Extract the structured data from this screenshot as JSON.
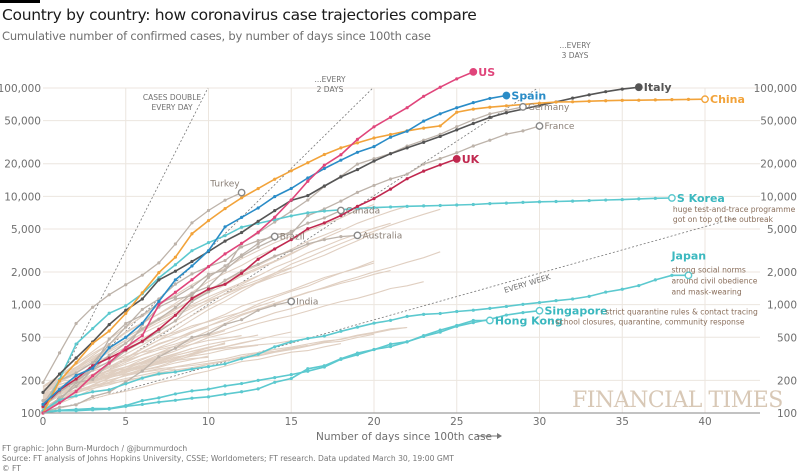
{
  "header": {
    "title": "Country by country: how coronavirus case trajectories compare",
    "subtitle": "Cumulative number of confirmed cases, by number of days since 100th case"
  },
  "footer": {
    "credit": "FT graphic: John Burn-Murdoch / @jburnmurdoch",
    "source": "Source: FT analysis of Johns Hopkins University, CSSE; Worldometers; FT research. Data updated March 30, 19:00 GMT",
    "copyright": "© FT"
  },
  "watermark": "FINANCIAL TIMES",
  "colors": {
    "us": "#e0457b",
    "spain": "#2a8cc7",
    "italy": "#555555",
    "china": "#f2a33a",
    "uk": "#c0284f",
    "teal": "#5cc9cf",
    "highlight_gray": "#bdb3aa",
    "background_line": "#e0cfc1",
    "grid": "#ece6df",
    "axis": "#9e9e9e"
  },
  "chart_data": {
    "type": "line",
    "title": "Country by country: how coronavirus case trajectories compare",
    "subtitle": "Cumulative number of confirmed cases, by number of days since 100th case",
    "xlabel": "Number of days since 100th case",
    "ylabel": "",
    "yscale": "log",
    "xlim": [
      0,
      43
    ],
    "ylim": [
      100,
      100000
    ],
    "x_ticks": [
      0,
      5,
      10,
      15,
      20,
      25,
      30,
      35,
      40
    ],
    "y_ticks": [
      100,
      200,
      500,
      1000,
      2000,
      5000,
      10000,
      20000,
      50000,
      100000
    ],
    "y_tick_labels": [
      "100",
      "200",
      "500",
      "1,000",
      "2,000",
      "5,000",
      "10,000",
      "20,000",
      "50,000",
      "100,000"
    ],
    "grid": true,
    "reference_lines": [
      {
        "label": "CASES DOUBLE EVERY DAY",
        "doubling_days": 1
      },
      {
        "label": "...EVERY 2 DAYS",
        "doubling_days": 2
      },
      {
        "label": "...EVERY 3 DAYS",
        "doubling_days": 3
      },
      {
        "label": "EVERY WEEK",
        "doubling_days": 7
      }
    ],
    "series": [
      {
        "name": "US",
        "style": "us",
        "label": "US",
        "values": [
          100,
          124,
          158,
          221,
          290,
          402,
          518,
          1000,
          1301,
          1697,
          2247,
          2943,
          3680,
          4663,
          6411,
          9259,
          13789,
          19383,
          24207,
          33546,
          43847,
          53740,
          65778,
          83836,
          101657,
          121478,
          140886
        ]
      },
      {
        "name": "Spain",
        "style": "spain",
        "label": "Spain",
        "values": [
          120,
          165,
          222,
          259,
          400,
          500,
          673,
          1073,
          1695,
          2277,
          3146,
          5232,
          6391,
          7798,
          9942,
          11826,
          14769,
          18077,
          21571,
          25496,
          28768,
          35136,
          39885,
          49515,
          57786,
          65719,
          73235,
          80110,
          85195
        ]
      },
      {
        "name": "Italy",
        "style": "italy",
        "label": "Italy",
        "values": [
          155,
          229,
          322,
          453,
          655,
          888,
          1128,
          1694,
          2036,
          2502,
          3089,
          3858,
          4636,
          5883,
          7375,
          9172,
          10149,
          12462,
          15113,
          17660,
          21157,
          24747,
          27980,
          31506,
          35713,
          41035,
          47021,
          53578,
          59138,
          63927,
          69176,
          74386,
          80589,
          86498,
          92472,
          97689,
          101739
        ]
      },
      {
        "name": "China",
        "style": "china",
        "label": "China",
        "values": [
          100,
          198,
          291,
          440,
          571,
          830,
          1287,
          1975,
          2744,
          4515,
          5974,
          7711,
          9692,
          11791,
          14380,
          17205,
          20440,
          24324,
          28018,
          31161,
          34546,
          37198,
          40171,
          42638,
          44653,
          59804,
          63851,
          66492,
          68500,
          70548,
          72436,
          74185,
          74576,
          75465,
          76288,
          76936,
          77150,
          77658,
          78064,
          78497,
          78824
        ]
      },
      {
        "name": "UK",
        "style": "uk",
        "label": "UK",
        "values": [
          115,
          163,
          206,
          273,
          321,
          383,
          460,
          594,
          798,
          1140,
          1391,
          1543,
          1950,
          2626,
          3269,
          3983,
          5018,
          5683,
          6650,
          8077,
          9529,
          11658,
          14543,
          17089,
          19522,
          22141
        ]
      },
      {
        "name": "Germany",
        "style": "gray-hl",
        "label": "Germany",
        "values": [
          130,
          159,
          196,
          262,
          482,
          670,
          799,
          1040,
          1176,
          1457,
          1908,
          2078,
          3675,
          4585,
          5795,
          7272,
          9257,
          12327,
          15320,
          19848,
          22213,
          24873,
          29056,
          32986,
          37323,
          43938,
          50871,
          57695,
          62095,
          66885
        ]
      },
      {
        "name": "France",
        "style": "gray-hl",
        "label": "France",
        "values": [
          100,
          130,
          191,
          204,
          285,
          377,
          653,
          949,
          1126,
          1209,
          1784,
          2281,
          2876,
          3661,
          4469,
          4499,
          6633,
          7652,
          9043,
          10871,
          12612,
          14459,
          16018,
          19856,
          22304,
          25233,
          29155,
          32964,
          37575,
          40174,
          44550
        ]
      },
      {
        "name": "Turkey",
        "style": "gray-hl",
        "label": "Turkey",
        "values": [
          191,
          359,
          670,
          947,
          1236,
          1529,
          1872,
          2433,
          3629,
          5698,
          7402,
          9217,
          10827
        ]
      },
      {
        "name": "Canada",
        "style": "gray-hl",
        "label": "Canada",
        "values": [
          103,
          138,
          176,
          252,
          342,
          441,
          598,
          736,
          943,
          1277,
          1465,
          2091,
          2792,
          3409,
          4018,
          4757,
          5655,
          6320,
          7398
        ]
      },
      {
        "name": "Brazil",
        "style": "gray-hl",
        "label": "Brazil",
        "values": [
          121,
          200,
          234,
          291,
          428,
          621,
          904,
          1128,
          1546,
          1924,
          2247,
          2554,
          3417,
          3904,
          4256
        ]
      },
      {
        "name": "Australia",
        "style": "gray-hl",
        "label": "Australia",
        "values": [
          112,
          156,
          197,
          249,
          298,
          375,
          454,
          565,
          709,
          1072,
          1314,
          1679,
          2044,
          2364,
          2810,
          3143,
          3640,
          3984,
          4250,
          4361
        ]
      },
      {
        "name": "India",
        "style": "gray-hl",
        "label": "India",
        "values": [
          102,
          113,
          119,
          142,
          156,
          194,
          244,
          330,
          396,
          499,
          536,
          657,
          727,
          887,
          987,
          1071
        ]
      },
      {
        "name": "S Korea",
        "style": "teal",
        "label": "S Korea",
        "note": "huge test-and-trace programme got on top of the outbreak",
        "values": [
          104,
          204,
          433,
          602,
          833,
          977,
          1261,
          1766,
          2337,
          3150,
          3736,
          4335,
          5186,
          5621,
          6088,
          6593,
          7041,
          7314,
          7513,
          7755,
          7869,
          7979,
          8086,
          8162,
          8236,
          8320,
          8413,
          8565,
          8652,
          8799,
          8897,
          8961,
          9037,
          9137,
          9241,
          9332,
          9478,
          9583,
          9661
        ]
      },
      {
        "name": "Japan",
        "style": "teal",
        "label": "Japan",
        "note": "strong social norms around civil obedience and mask-wearing",
        "values": [
          105,
          132,
          144,
          157,
          164,
          186,
          210,
          230,
          239,
          254,
          268,
          284,
          317,
          349,
          408,
          455,
          488,
          514,
          568,
          620,
          675,
          716,
          780,
          814,
          829,
          865,
          889,
          924,
          963,
          1007,
          1046,
          1089,
          1128,
          1193,
          1307,
          1387,
          1499,
          1693,
          1866,
          1866
        ]
      },
      {
        "name": "Singapore",
        "style": "teal",
        "label": "Singapore",
        "note": "strict quarantine rules & contact tracing",
        "values": [
          102,
          106,
          108,
          110,
          110,
          117,
          130,
          138,
          150,
          160,
          166,
          178,
          187,
          200,
          212,
          226,
          243,
          266,
          313,
          345,
          385,
          432,
          455,
          509,
          558,
          631,
          683,
          732,
          802,
          844,
          879
        ]
      },
      {
        "name": "Hong Kong",
        "style": "teal",
        "label": "Hong Kong",
        "note": "school closures, quarantine, community response",
        "values": [
          100,
          105,
          105,
          107,
          109,
          115,
          120,
          126,
          131,
          137,
          141,
          149,
          157,
          167,
          192,
          208,
          256,
          273,
          317,
          357,
          386,
          410,
          453,
          518,
          582,
          642,
          715,
          715
        ]
      }
    ],
    "background_series_count": 40,
    "annotations": [
      "CASES DOUBLE EVERY DAY",
      "...EVERY 2 DAYS",
      "...EVERY 3 DAYS",
      "EVERY WEEK"
    ]
  }
}
